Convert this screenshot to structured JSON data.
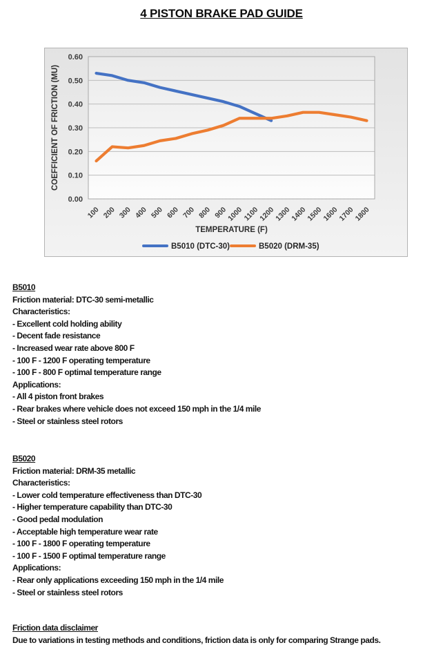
{
  "page": {
    "title": "4 PISTON BRAKE PAD GUIDE"
  },
  "chart_data": {
    "type": "line",
    "title": "",
    "xlabel": "TEMPERATURE (F)",
    "ylabel": "COEFFICIENT OF FRICTION (MU)",
    "x_categories": [
      "100",
      "200",
      "300",
      "400",
      "500",
      "600",
      "700",
      "800",
      "900",
      "1000",
      "1100",
      "1200",
      "1300",
      "1400",
      "1500",
      "1600",
      "1700",
      "1800"
    ],
    "ylim": [
      0,
      0.6
    ],
    "y_tick_step": 0.1,
    "y_tick_labels": [
      "0.00",
      "0.10",
      "0.20",
      "0.30",
      "0.40",
      "0.50",
      "0.60"
    ],
    "grid": true,
    "legend_position": "bottom",
    "series": [
      {
        "name": "B5010 (DTC-30)",
        "color": "#4472c4",
        "values": [
          0.53,
          0.52,
          0.5,
          0.49,
          0.47,
          0.455,
          0.44,
          0.425,
          0.41,
          0.39,
          0.36,
          0.33
        ]
      },
      {
        "name": "B5020 (DRM-35)",
        "color": "#ed7d31",
        "values": [
          0.16,
          0.22,
          0.215,
          0.225,
          0.245,
          0.255,
          0.275,
          0.29,
          0.31,
          0.34,
          0.34,
          0.34,
          0.35,
          0.365,
          0.365,
          0.355,
          0.345,
          0.33
        ]
      }
    ]
  },
  "sections": [
    {
      "heading": "B5010",
      "lines": [
        "Friction material: DTC-30 semi-metallic",
        "Characteristics:",
        "- Excellent cold holding ability",
        "- Decent fade resistance",
        "- Increased wear rate above 800 F",
        "- 100 F - 1200 F operating temperature",
        "- 100 F - 800 F optimal temperature range",
        "Applications:",
        "- All 4 piston front brakes",
        "- Rear brakes where vehicle does not exceed 150 mph in the 1/4 mile",
        "- Steel or stainless steel rotors"
      ]
    },
    {
      "heading": "B5020",
      "lines": [
        "Friction material: DRM-35 metallic",
        "Characteristics:",
        "- Lower cold temperature effectiveness than DTC-30",
        "- Higher temperature capability than DTC-30",
        "- Good pedal modulation",
        "- Acceptable high temperature wear rate",
        "- 100 F - 1800 F operating temperature",
        "- 100 F - 1500 F optimal temperature range",
        "Applications:",
        "- Rear only applications exceeding 150 mph in the 1/4 mile",
        "- Steel or stainless steel rotors"
      ]
    },
    {
      "heading": "Friction data disclaimer",
      "lines": [
        "Due to variations in testing methods and conditions, friction data is only for comparing Strange pads."
      ]
    }
  ]
}
